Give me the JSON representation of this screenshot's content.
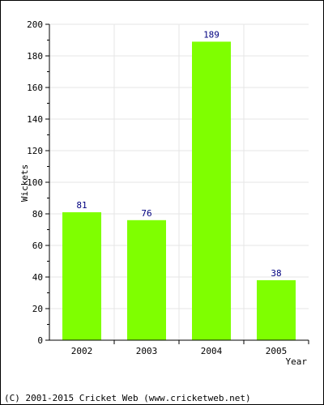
{
  "chart_data": {
    "type": "bar",
    "categories": [
      "2002",
      "2003",
      "2004",
      "2005"
    ],
    "values": [
      81,
      76,
      189,
      38
    ],
    "data_labels": [
      "81",
      "76",
      "189",
      "38"
    ],
    "xlabel": "Year",
    "ylabel": "Wickets",
    "ylim": [
      0,
      200
    ],
    "yticks": [
      "0",
      "20",
      "40",
      "60",
      "80",
      "100",
      "120",
      "140",
      "160",
      "180",
      "200"
    ],
    "grid": true,
    "legend": "none",
    "colors": {
      "bar": "#7fff00",
      "label": "#000080",
      "grid": "#e6e6e6",
      "axis": "#000000"
    }
  },
  "footer": {
    "copyright": "(C) 2001-2015 Cricket Web (www.cricketweb.net)"
  }
}
